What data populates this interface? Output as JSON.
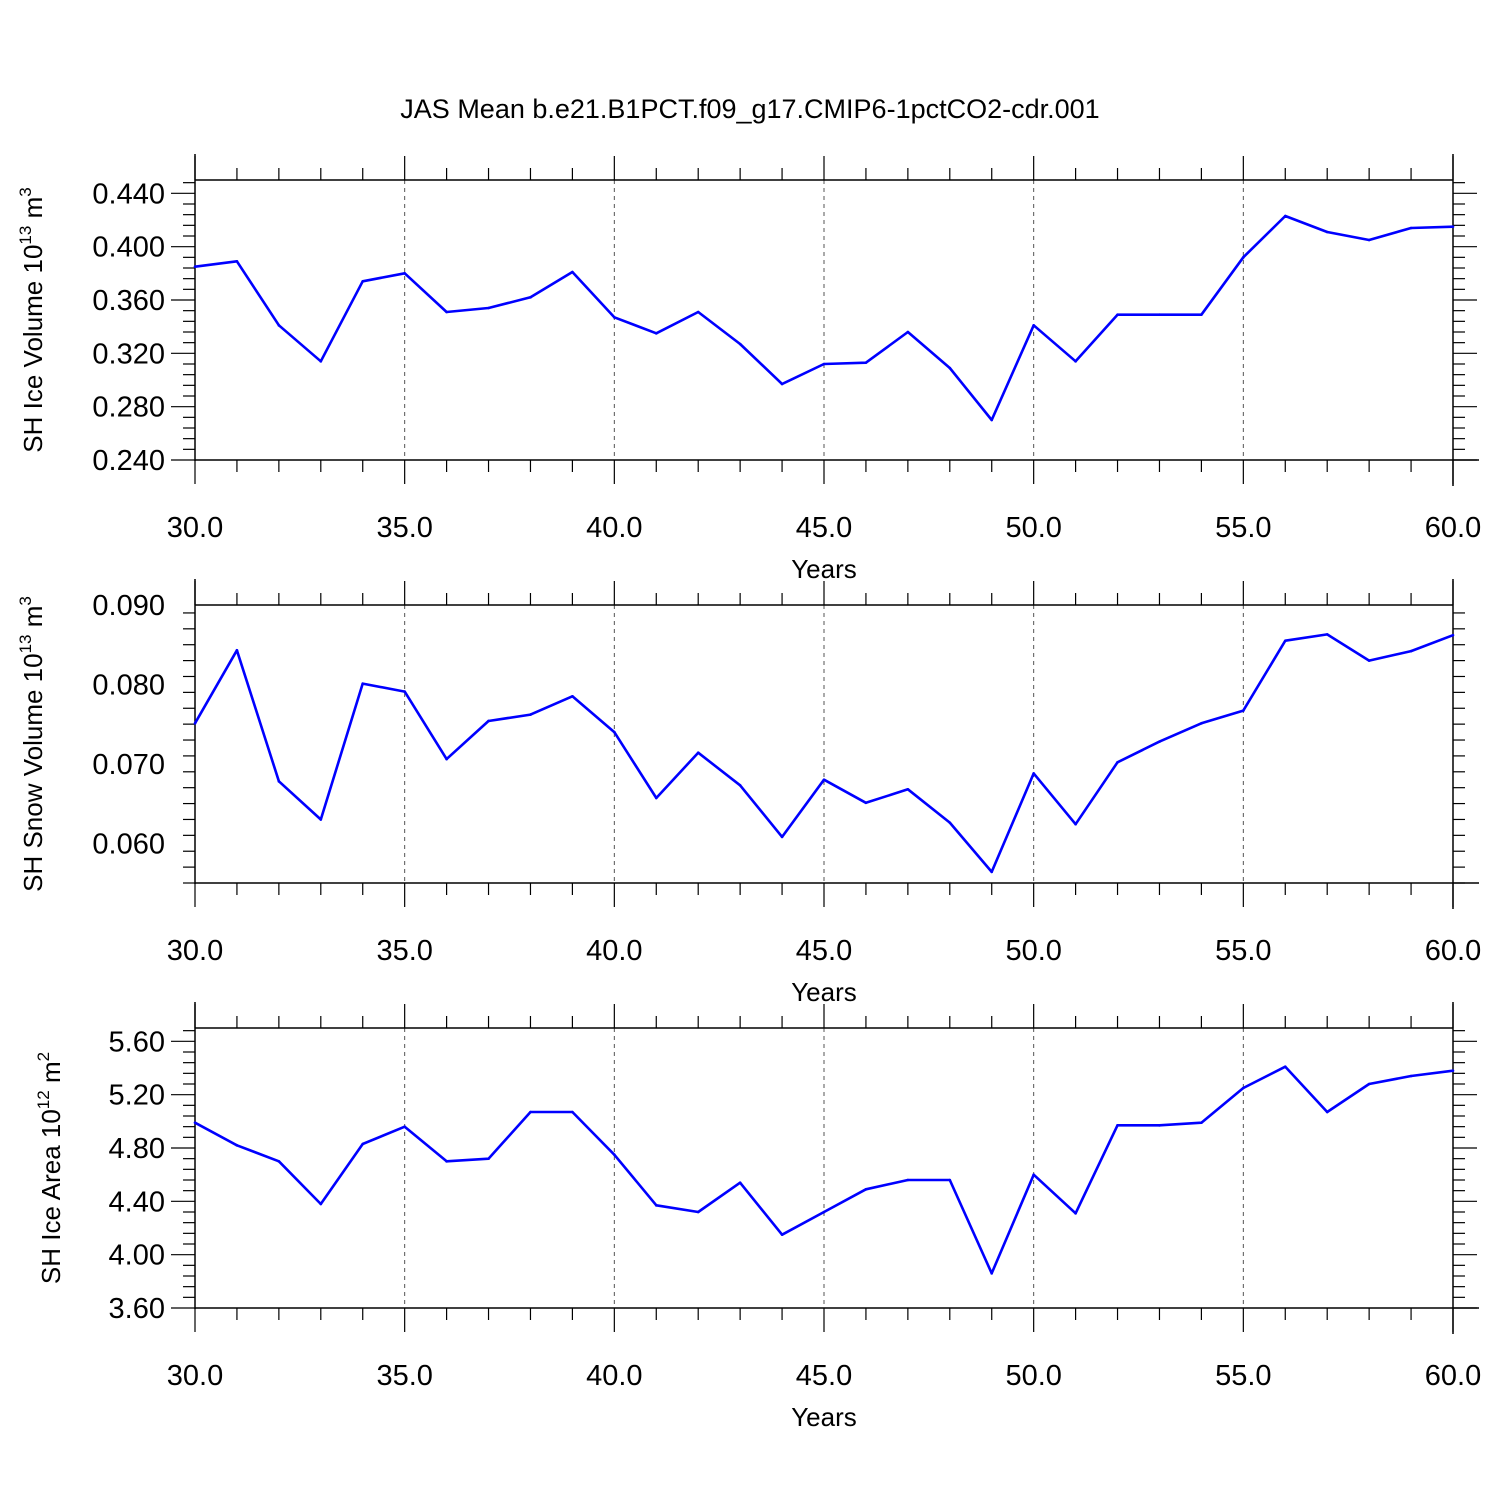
{
  "figure": {
    "title": "JAS Mean b.e21.B1PCT.f09_g17.CMIP6-1pctCO2-cdr.001",
    "line_color": "#0000ff",
    "grid_color": "#555555"
  },
  "chart_data": [
    {
      "type": "line",
      "ylabel": "SH Ice Volume 10",
      "ylabel_exp": "13",
      "ylabel_unit": " m",
      "ylabel_unit_exp": "3",
      "xlabel": "Years",
      "xlim": [
        30,
        60
      ],
      "ylim": [
        0.24,
        0.45
      ],
      "x_ticks": [
        30,
        35,
        40,
        45,
        50,
        55,
        60
      ],
      "x_tick_labels": [
        "30.0",
        "35.0",
        "40.0",
        "45.0",
        "50.0",
        "55.0",
        "60.0"
      ],
      "y_ticks": [
        0.24,
        0.28,
        0.32,
        0.36,
        0.4,
        0.44
      ],
      "y_tick_labels": [
        "0.240",
        "0.280",
        "0.320",
        "0.360",
        "0.400",
        "0.440"
      ],
      "grid": "vertical dashed at major x ticks",
      "x": [
        30,
        31,
        32,
        33,
        34,
        35,
        36,
        37,
        38,
        39,
        40,
        41,
        42,
        43,
        44,
        45,
        46,
        47,
        48,
        49,
        50,
        51,
        52,
        53,
        54,
        55,
        56,
        57,
        58,
        59,
        60
      ],
      "values": [
        0.385,
        0.389,
        0.341,
        0.314,
        0.374,
        0.38,
        0.351,
        0.354,
        0.362,
        0.381,
        0.347,
        0.335,
        0.351,
        0.327,
        0.297,
        0.312,
        0.313,
        0.336,
        0.309,
        0.27,
        0.341,
        0.314,
        0.349,
        0.349,
        0.349,
        0.392,
        0.423,
        0.411,
        0.405,
        0.414,
        0.415
      ]
    },
    {
      "type": "line",
      "ylabel": "SH Snow Volume 10",
      "ylabel_exp": "13",
      "ylabel_unit": " m",
      "ylabel_unit_exp": "3",
      "xlabel": "Years",
      "xlim": [
        30,
        60
      ],
      "ylim": [
        0.055,
        0.09
      ],
      "x_ticks": [
        30,
        35,
        40,
        45,
        50,
        55,
        60
      ],
      "x_tick_labels": [
        "30.0",
        "35.0",
        "40.0",
        "45.0",
        "50.0",
        "55.0",
        "60.0"
      ],
      "y_ticks": [
        0.06,
        0.07,
        0.08,
        0.09
      ],
      "y_tick_labels": [
        "0.060",
        "0.070",
        "0.080",
        "0.090"
      ],
      "grid": "vertical dashed at major x ticks",
      "x": [
        30,
        31,
        32,
        33,
        34,
        35,
        36,
        37,
        38,
        39,
        40,
        41,
        42,
        43,
        44,
        45,
        46,
        47,
        48,
        49,
        50,
        51,
        52,
        53,
        54,
        55,
        56,
        57,
        58,
        59,
        60
      ],
      "values": [
        0.0751,
        0.0843,
        0.0678,
        0.063,
        0.0801,
        0.0791,
        0.0706,
        0.0754,
        0.0762,
        0.0785,
        0.074,
        0.0657,
        0.0714,
        0.0673,
        0.0608,
        0.068,
        0.0651,
        0.0668,
        0.0626,
        0.0564,
        0.0688,
        0.0624,
        0.0702,
        0.0728,
        0.0751,
        0.0767,
        0.0855,
        0.0863,
        0.083,
        0.0842,
        0.0862
      ]
    },
    {
      "type": "line",
      "ylabel": "SH Ice Area 10",
      "ylabel_exp": "12",
      "ylabel_unit": " m",
      "ylabel_unit_exp": "2",
      "xlabel": "Years",
      "xlim": [
        30,
        60
      ],
      "ylim": [
        3.6,
        5.7
      ],
      "x_ticks": [
        30,
        35,
        40,
        45,
        50,
        55,
        60
      ],
      "x_tick_labels": [
        "30.0",
        "35.0",
        "40.0",
        "45.0",
        "50.0",
        "55.0",
        "60.0"
      ],
      "y_ticks": [
        3.6,
        4.0,
        4.4,
        4.8,
        5.2,
        5.6
      ],
      "y_tick_labels": [
        "3.60",
        "4.00",
        "4.40",
        "4.80",
        "5.20",
        "5.60"
      ],
      "grid": "vertical dashed at major x ticks",
      "x": [
        30,
        31,
        32,
        33,
        34,
        35,
        36,
        37,
        38,
        39,
        40,
        41,
        42,
        43,
        44,
        45,
        46,
        47,
        48,
        49,
        50,
        51,
        52,
        53,
        54,
        55,
        56,
        57,
        58,
        59,
        60
      ],
      "values": [
        4.99,
        4.82,
        4.7,
        4.38,
        4.83,
        4.96,
        4.7,
        4.72,
        5.07,
        5.07,
        4.75,
        4.37,
        4.32,
        4.54,
        4.15,
        4.32,
        4.49,
        4.56,
        4.56,
        3.86,
        4.6,
        4.31,
        4.97,
        4.97,
        4.99,
        5.25,
        5.41,
        5.07,
        5.28,
        5.34,
        5.38
      ]
    }
  ]
}
